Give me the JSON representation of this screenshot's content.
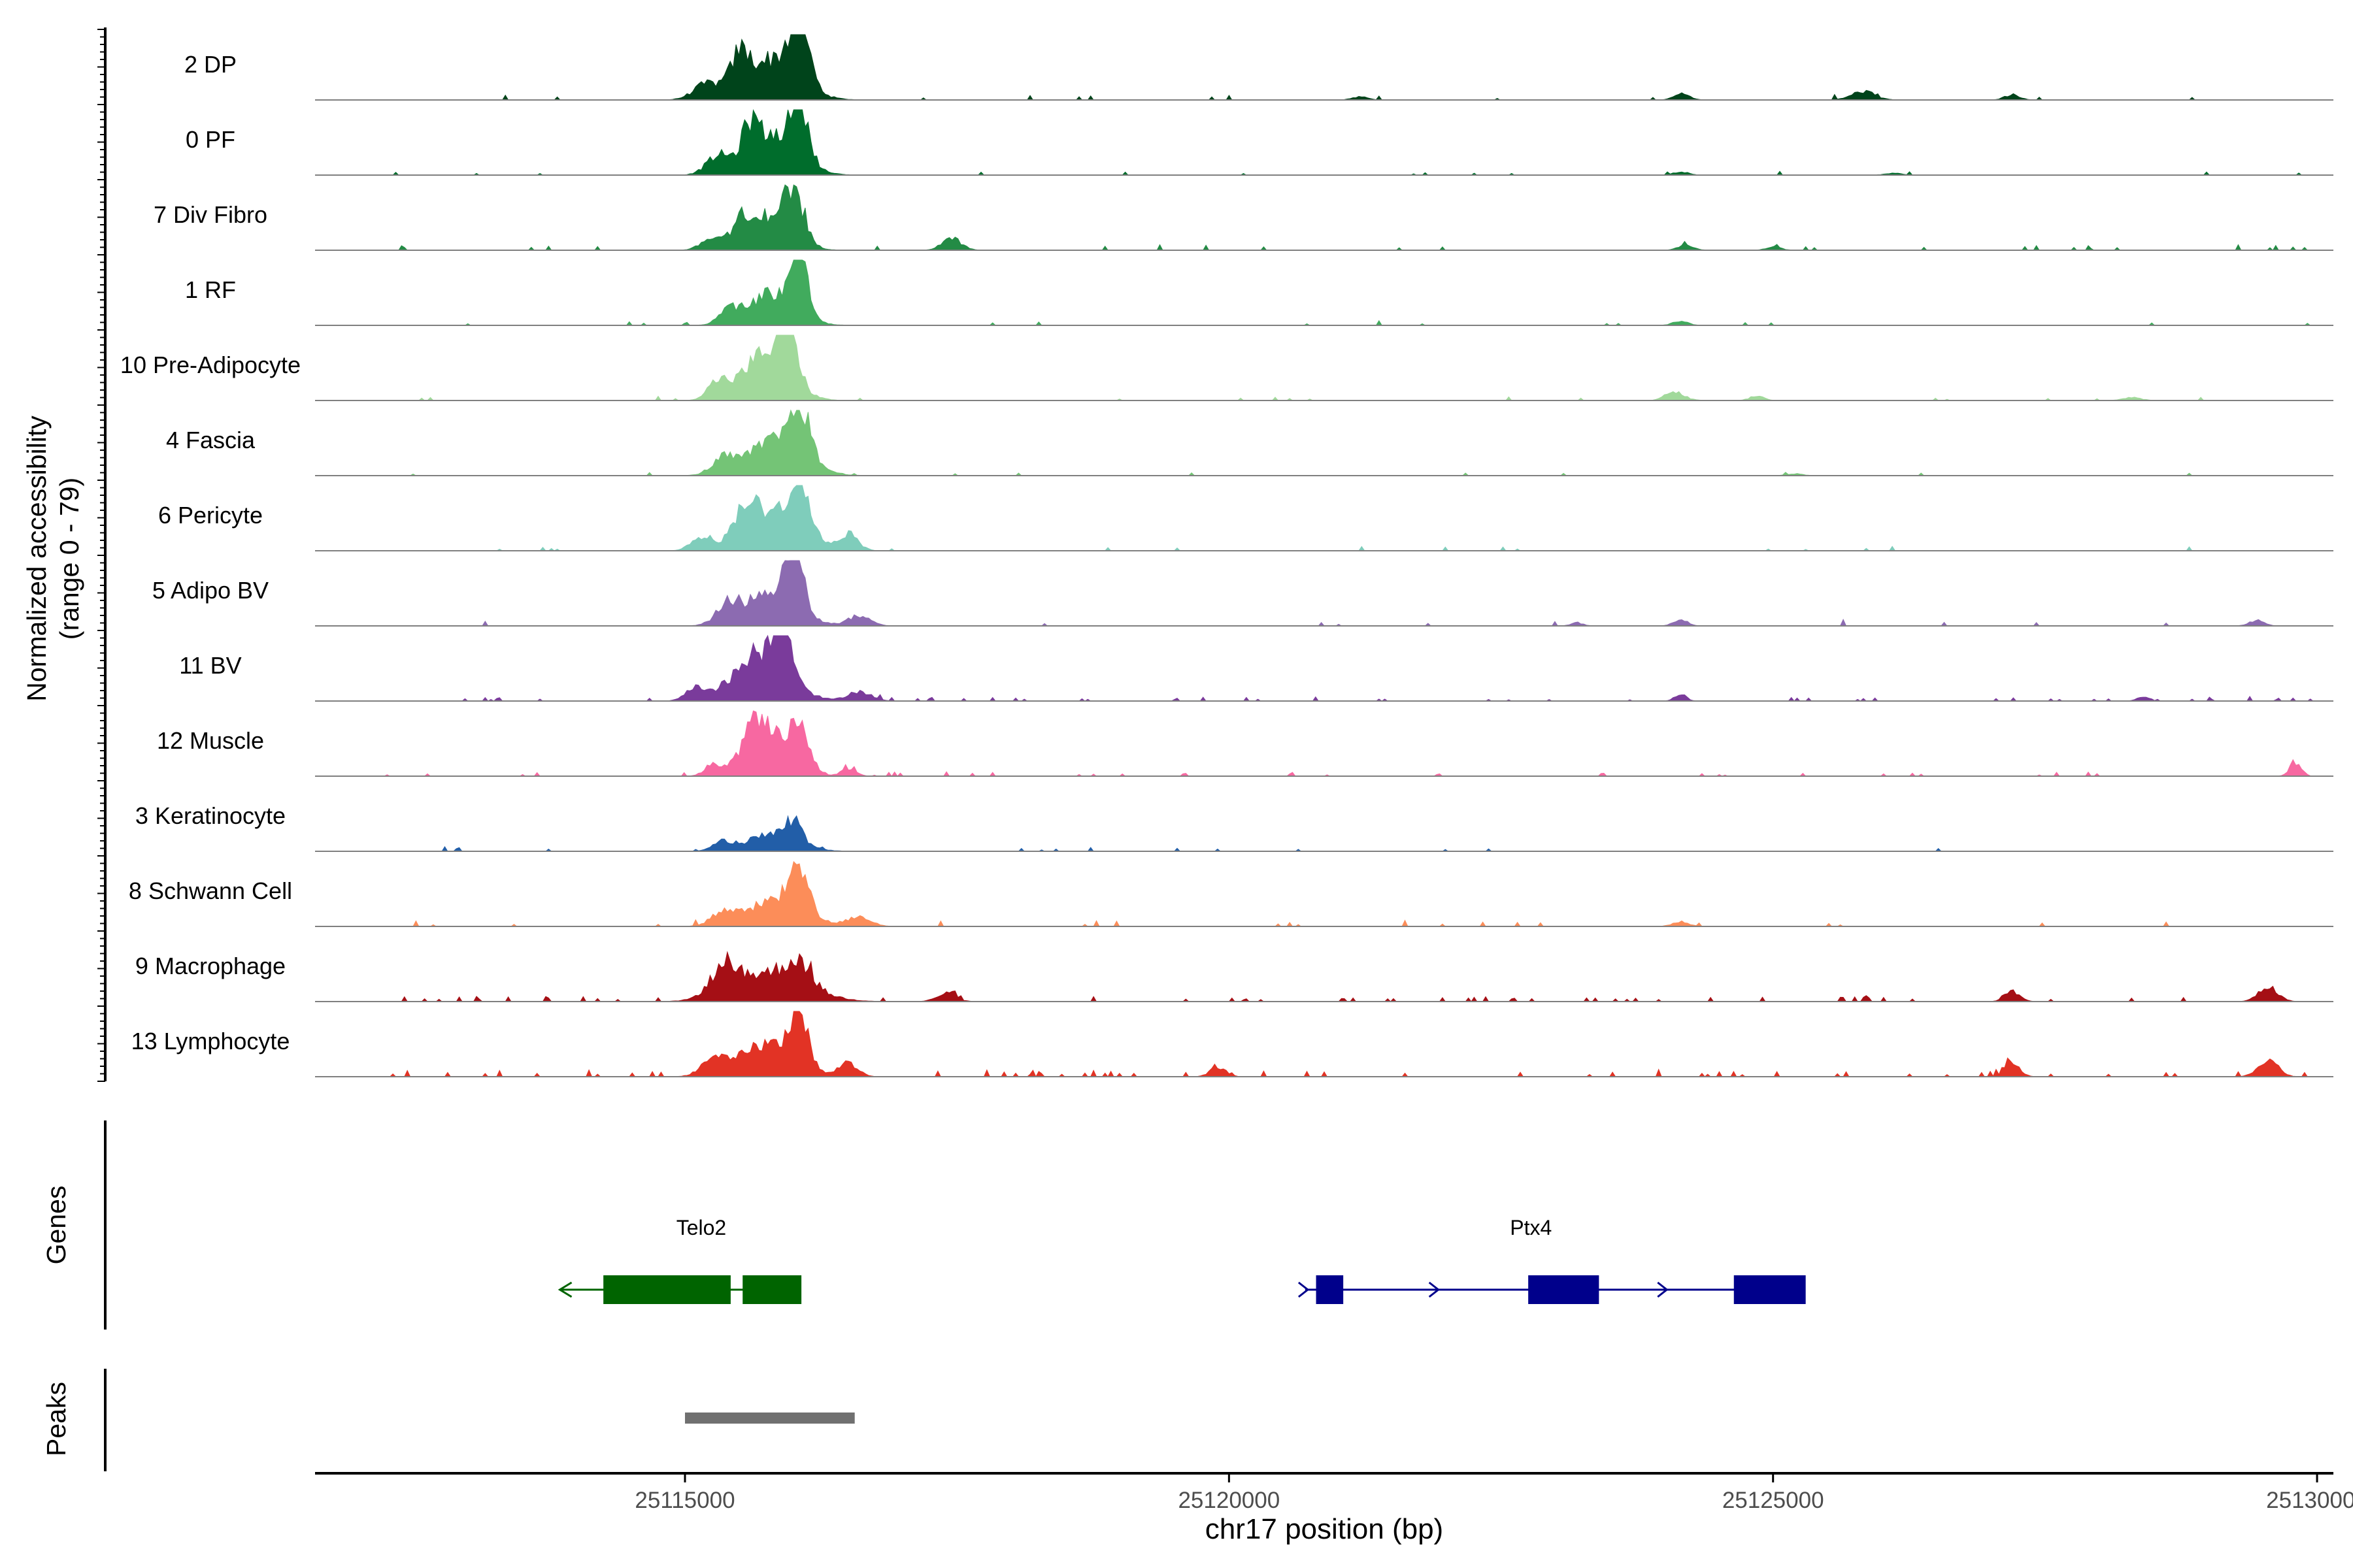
{
  "chart_data": {
    "type": "area",
    "subtype": "genome-coverage-track",
    "ylabel": "Normalized accessibility",
    "ylabel_range": "(range 0 - 79)",
    "ylim": [
      0,
      79
    ],
    "xlabel": "chr17 position (bp)",
    "xlim": [
      25111600,
      25130150
    ],
    "x_ticks": [
      25115000,
      25120000,
      25125000,
      25130000
    ],
    "x_tick_labels": [
      "25115000",
      "25120000",
      "25125000",
      "25130000"
    ],
    "grid": false,
    "track_labels": {
      "genes": "Genes",
      "peaks": "Peaks"
    },
    "series": [
      {
        "name": "2 DP",
        "color": "#00441b",
        "bg": [
          0.03,
          0.02
        ],
        "scale": 1.0,
        "peaks": [
          [
            25115790,
            700,
            0.62
          ],
          [
            25116050,
            250,
            0.95
          ],
          [
            25115200,
            350,
            0.22
          ],
          [
            25115500,
            220,
            0.45
          ],
          [
            25124160,
            200,
            0.09
          ],
          [
            25125830,
            300,
            0.13
          ],
          [
            25127200,
            200,
            0.08
          ],
          [
            25121200,
            200,
            0.05
          ]
        ]
      },
      {
        "name": "0 PF",
        "color": "#006d2c",
        "bg": [
          0.02,
          0.02
        ],
        "scale": 1.0,
        "peaks": [
          [
            25115800,
            650,
            0.6
          ],
          [
            25116050,
            230,
            0.92
          ],
          [
            25115300,
            300,
            0.25
          ],
          [
            25115600,
            200,
            0.45
          ],
          [
            25124150,
            200,
            0.05
          ],
          [
            25126100,
            200,
            0.03
          ]
        ]
      },
      {
        "name": "7 Div Fibro",
        "color": "#238b45",
        "bg": [
          0.03,
          0.05
        ],
        "scale": 1.0,
        "peaks": [
          [
            25115800,
            550,
            0.55
          ],
          [
            25116000,
            250,
            0.62
          ],
          [
            25115250,
            280,
            0.18
          ],
          [
            25115500,
            200,
            0.35
          ],
          [
            25117450,
            250,
            0.18
          ],
          [
            25124200,
            200,
            0.08
          ],
          [
            25125000,
            200,
            0.05
          ]
        ]
      },
      {
        "name": "1 RF",
        "color": "#41ab5d",
        "bg": [
          0.02,
          0.02
        ],
        "scale": 1.0,
        "peaks": [
          [
            25115800,
            600,
            0.5
          ],
          [
            25116050,
            220,
            0.85
          ],
          [
            25115400,
            250,
            0.2
          ],
          [
            25124150,
            200,
            0.06
          ]
        ]
      },
      {
        "name": "10 Pre-Adipocyte",
        "color": "#a1d99b",
        "bg": [
          0.02,
          0.02
        ],
        "scale": 1.0,
        "peaks": [
          [
            25115750,
            600,
            0.72
          ],
          [
            25115950,
            220,
            0.9
          ],
          [
            25115300,
            260,
            0.25
          ],
          [
            25124100,
            250,
            0.12
          ],
          [
            25124850,
            180,
            0.07
          ],
          [
            25128300,
            220,
            0.05
          ]
        ]
      },
      {
        "name": "4 Fascia",
        "color": "#74c476",
        "bg": [
          0.02,
          0.02
        ],
        "scale": 1.0,
        "peaks": [
          [
            25115850,
            700,
            0.55
          ],
          [
            25116050,
            250,
            0.78
          ],
          [
            25115350,
            300,
            0.22
          ],
          [
            25125200,
            200,
            0.03
          ]
        ]
      },
      {
        "name": "6 Pericyte",
        "color": "#7fcdbb",
        "bg": [
          0.02,
          0.02
        ],
        "scale": 1.0,
        "peaks": [
          [
            25115800,
            750,
            0.58
          ],
          [
            25116050,
            250,
            0.85
          ],
          [
            25115150,
            260,
            0.2
          ],
          [
            25115550,
            250,
            0.42
          ],
          [
            25116500,
            250,
            0.25
          ]
        ]
      },
      {
        "name": "5 Adipo BV",
        "color": "#8c6bb1",
        "bg": [
          0.03,
          0.03
        ],
        "scale": 1.0,
        "peaks": [
          [
            25115800,
            650,
            0.5
          ],
          [
            25116000,
            230,
            0.88
          ],
          [
            25115400,
            300,
            0.28
          ],
          [
            25116600,
            300,
            0.15
          ],
          [
            25124150,
            180,
            0.1
          ],
          [
            25123200,
            150,
            0.05
          ],
          [
            25129450,
            200,
            0.08
          ]
        ]
      },
      {
        "name": "11 BV",
        "color": "#7a3b9b",
        "bg": [
          0.02,
          0.07
        ],
        "scale": 1.0,
        "peaks": [
          [
            25115700,
            700,
            0.7
          ],
          [
            25115900,
            250,
            0.82
          ],
          [
            25115100,
            250,
            0.18
          ],
          [
            25116600,
            300,
            0.15
          ],
          [
            25124150,
            150,
            0.1
          ],
          [
            25128400,
            150,
            0.06
          ]
        ]
      },
      {
        "name": "12 Muscle",
        "color": "#f768a1",
        "bg": [
          0.02,
          0.06
        ],
        "scale": 1.0,
        "peaks": [
          [
            25115700,
            450,
            0.92
          ],
          [
            25116050,
            280,
            0.7
          ],
          [
            25115250,
            200,
            0.18
          ],
          [
            25116500,
            200,
            0.1
          ],
          [
            25129800,
            150,
            0.22
          ]
        ]
      },
      {
        "name": "3 Keratinocyte",
        "color": "#225ea8",
        "bg": [
          0.02,
          0.03
        ],
        "scale": 1.0,
        "peaks": [
          [
            25115800,
            650,
            0.25
          ],
          [
            25116000,
            200,
            0.32
          ],
          [
            25115350,
            250,
            0.12
          ]
        ]
      },
      {
        "name": "8 Schwann Cell",
        "color": "#fc8d59",
        "bg": [
          0.03,
          0.04
        ],
        "scale": 1.0,
        "peaks": [
          [
            25115850,
            700,
            0.42
          ],
          [
            25116050,
            220,
            0.72
          ],
          [
            25115350,
            300,
            0.2
          ],
          [
            25116600,
            300,
            0.15
          ],
          [
            25124150,
            200,
            0.08
          ]
        ]
      },
      {
        "name": "9 Macrophage",
        "color": "#a50f15",
        "bg": [
          0.03,
          0.08
        ],
        "scale": 1.0,
        "peaks": [
          [
            25115800,
            900,
            0.45
          ],
          [
            25115350,
            350,
            0.38
          ],
          [
            25116050,
            300,
            0.32
          ],
          [
            25117400,
            250,
            0.12
          ],
          [
            25127200,
            200,
            0.15
          ],
          [
            25129550,
            250,
            0.22
          ]
        ]
      },
      {
        "name": "13 Lymphocyte",
        "color": "#e23325",
        "bg": [
          0.03,
          0.1
        ],
        "scale": 1.0,
        "peaks": [
          [
            25115750,
            700,
            0.5
          ],
          [
            25116050,
            220,
            0.92
          ],
          [
            25115250,
            300,
            0.22
          ],
          [
            25116500,
            250,
            0.2
          ],
          [
            25127200,
            200,
            0.2
          ],
          [
            25129550,
            250,
            0.28
          ],
          [
            25119900,
            200,
            0.15
          ]
        ]
      }
    ],
    "genes": [
      {
        "name": "Telo2",
        "color": "#006400",
        "strand": "-",
        "start": 25113850,
        "end": 25115950,
        "exons": [
          [
            25114250,
            25115420
          ],
          [
            25115530,
            25116070
          ]
        ]
      },
      {
        "name": "Ptx4",
        "color": "#00008b",
        "strand": "+",
        "start": 25120700,
        "end": 25125250,
        "exons": [
          [
            25120800,
            25121050
          ],
          [
            25122750,
            25123400
          ],
          [
            25124640,
            25125300
          ]
        ]
      }
    ],
    "peaks_track": [
      {
        "start": 25115000,
        "end": 25116560,
        "color": "#707070"
      }
    ]
  }
}
